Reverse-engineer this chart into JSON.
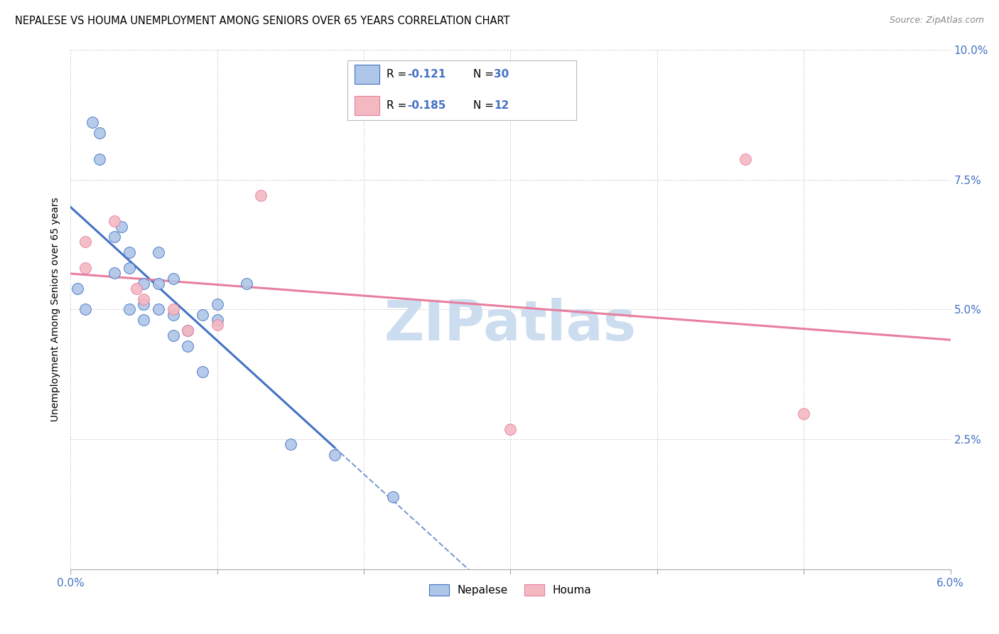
{
  "title": "NEPALESE VS HOUMA UNEMPLOYMENT AMONG SENIORS OVER 65 YEARS CORRELATION CHART",
  "source": "Source: ZipAtlas.com",
  "ylabel": "Unemployment Among Seniors over 65 years",
  "xlim": [
    0.0,
    0.06
  ],
  "ylim": [
    0.0,
    0.1
  ],
  "xtick_vals": [
    0.0,
    0.01,
    0.02,
    0.03,
    0.04,
    0.05,
    0.06
  ],
  "ytick_vals": [
    0.0,
    0.025,
    0.05,
    0.075,
    0.1
  ],
  "nepalese_x": [
    0.0005,
    0.001,
    0.0015,
    0.002,
    0.002,
    0.003,
    0.003,
    0.0035,
    0.004,
    0.004,
    0.004,
    0.005,
    0.005,
    0.005,
    0.006,
    0.006,
    0.006,
    0.007,
    0.007,
    0.007,
    0.008,
    0.008,
    0.009,
    0.009,
    0.01,
    0.01,
    0.012,
    0.015,
    0.018,
    0.022
  ],
  "nepalese_y": [
    0.054,
    0.05,
    0.086,
    0.084,
    0.079,
    0.064,
    0.057,
    0.066,
    0.058,
    0.05,
    0.061,
    0.055,
    0.051,
    0.048,
    0.061,
    0.055,
    0.05,
    0.056,
    0.049,
    0.045,
    0.046,
    0.043,
    0.049,
    0.038,
    0.051,
    0.048,
    0.055,
    0.024,
    0.022,
    0.014
  ],
  "houma_x": [
    0.001,
    0.001,
    0.003,
    0.0045,
    0.005,
    0.007,
    0.008,
    0.01,
    0.013,
    0.03,
    0.046,
    0.05
  ],
  "houma_y": [
    0.063,
    0.058,
    0.067,
    0.054,
    0.052,
    0.05,
    0.046,
    0.047,
    0.072,
    0.027,
    0.079,
    0.03
  ],
  "nepalese_color": "#aec6e8",
  "houma_color": "#f4b8c1",
  "nepalese_line_color": "#4472c4",
  "houma_line_color": "#e87fa0",
  "nepalese_R": "-0.121",
  "nepalese_N": "30",
  "houma_R": "-0.185",
  "houma_N": "12",
  "watermark": "ZIPatlas",
  "watermark_color": "#ccddf0"
}
